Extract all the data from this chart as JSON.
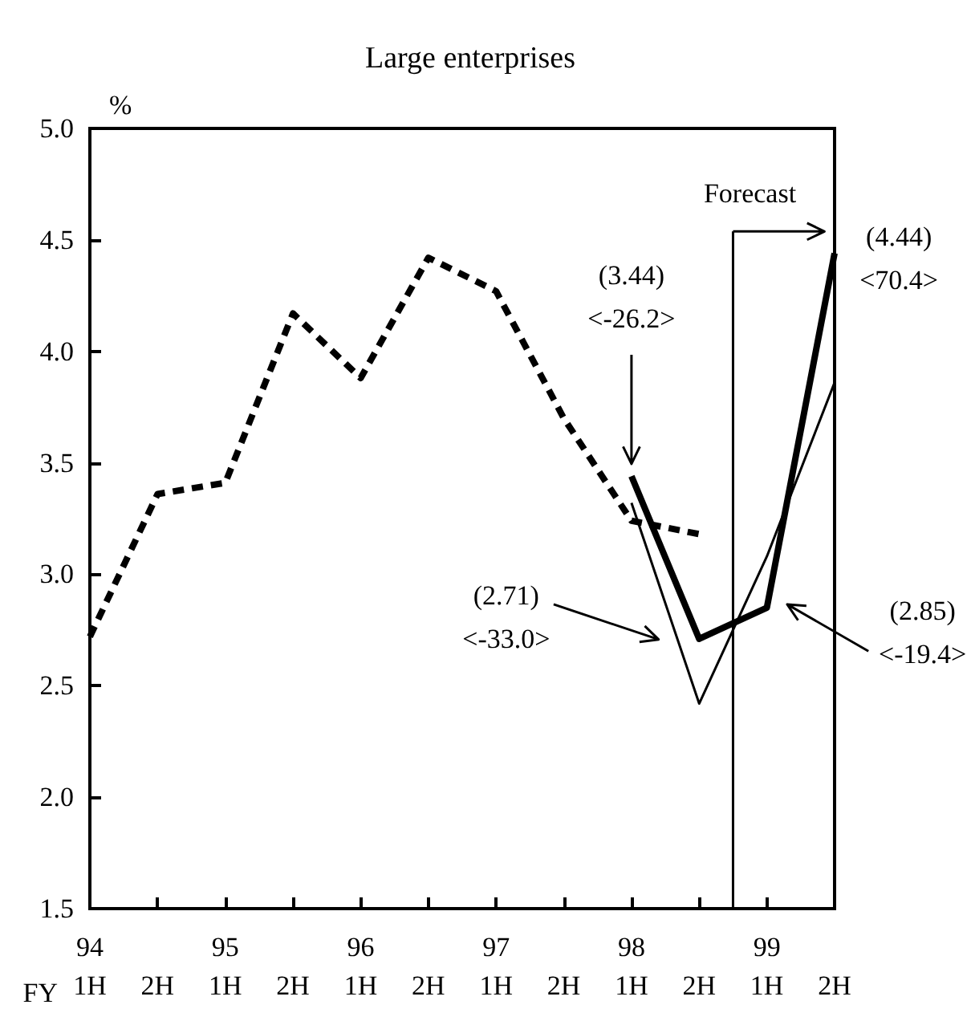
{
  "chart_data": {
    "type": "line",
    "title": "Large enterprises",
    "ylabel": "%",
    "xlabel": "FY",
    "categories": [
      "94\n1H",
      "2H",
      "95\n1H",
      "2H",
      "96\n1H",
      "2H",
      "97\n1H",
      "2H",
      "98\n1H",
      "2H",
      "99\n1H",
      "2H"
    ],
    "ylim": [
      1.5,
      5.0
    ],
    "yticks": [
      {
        "value": 1.5,
        "label": "1.5"
      },
      {
        "value": 2.0,
        "label": "2.0"
      },
      {
        "value": 2.5,
        "label": "2.5"
      },
      {
        "value": 3.0,
        "label": "3.0"
      },
      {
        "value": 3.5,
        "label": "3.5"
      },
      {
        "value": 4.0,
        "label": "4.0"
      },
      {
        "value": 4.5,
        "label": "4.5"
      },
      {
        "value": 5.0,
        "label": "5.0"
      }
    ],
    "grid": false,
    "marker": "none",
    "series": [
      {
        "color": "#000000",
        "line_style": "dashed",
        "values": [
          2.72,
          3.36,
          3.41,
          4.17,
          3.88,
          4.42,
          4.27,
          3.7,
          3.24,
          3.18,
          null,
          null
        ]
      },
      {
        "color": "#000000",
        "line_style": "solid",
        "values": [
          null,
          null,
          null,
          null,
          null,
          null,
          null,
          null,
          3.44,
          2.71,
          2.85,
          4.44
        ]
      },
      {
        "color": "#000000",
        "line_style": "solid",
        "values": [
          null,
          null,
          null,
          null,
          null,
          null,
          null,
          null,
          3.32,
          2.42,
          3.08,
          3.86
        ]
      }
    ],
    "ref_lines": [
      {
        "axis": "x",
        "label": "Forecast"
      }
    ],
    "annotations": [
      "(3.44)\n<-26.2>",
      "(2.71)\n<-33.0>",
      "(2.85)\n<-19.4>",
      "(4.44)\n<70.4>"
    ]
  }
}
